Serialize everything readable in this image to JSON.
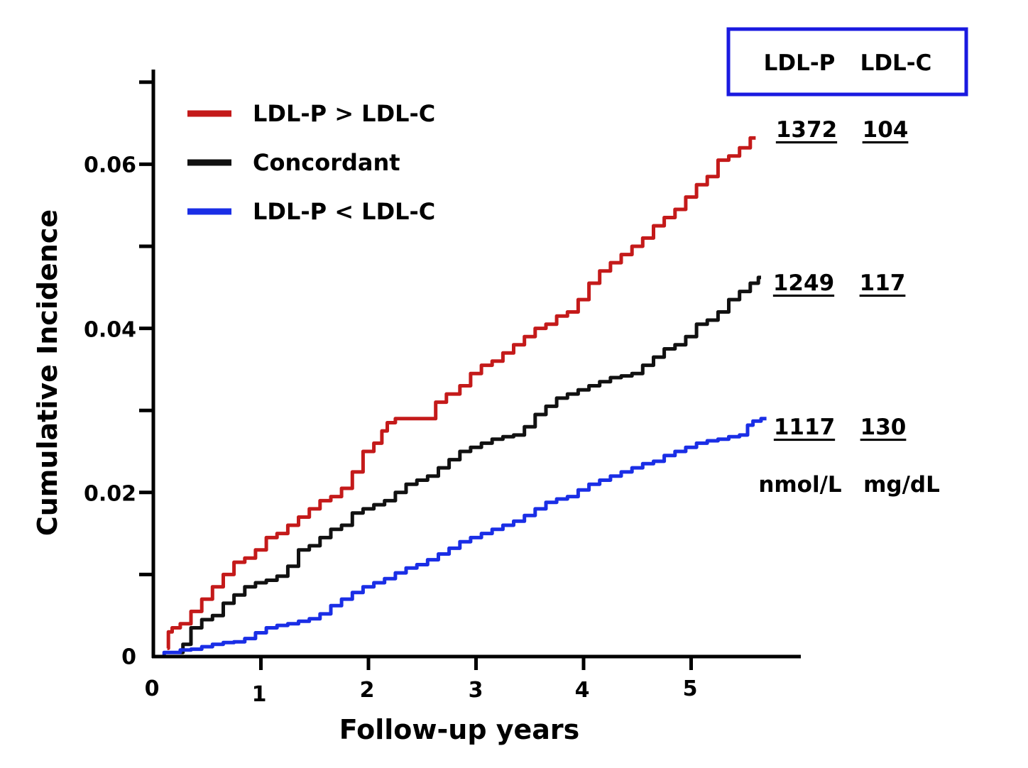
{
  "chart_data": {
    "type": "line",
    "xlabel": "Follow-up years",
    "ylabel": "Cumulative Incidence",
    "xlim": [
      0,
      6
    ],
    "ylim": [
      0,
      0.07
    ],
    "x_ticks": [
      "0",
      "1",
      "2",
      "3",
      "4",
      "5"
    ],
    "y_ticks": [
      "0",
      "0.02",
      "0.04",
      "0.06"
    ],
    "legend_position": "top-left",
    "series": [
      {
        "name": "LDL-P > LDL-C",
        "color": "#c41a1a",
        "x": [
          0.13,
          0.15,
          0.2,
          0.3,
          0.4,
          0.5,
          0.6,
          0.7,
          0.8,
          0.9,
          1.0,
          1.1,
          1.2,
          1.3,
          1.4,
          1.5,
          1.6,
          1.7,
          1.8,
          1.9,
          2.0,
          2.1,
          2.15,
          2.2,
          2.3,
          2.4,
          2.5,
          2.6,
          2.65,
          2.8,
          2.9,
          3.0,
          3.1,
          3.2,
          3.3,
          3.4,
          3.5,
          3.6,
          3.7,
          3.8,
          3.9,
          4.0,
          4.1,
          4.2,
          4.3,
          4.4,
          4.5,
          4.6,
          4.7,
          4.8,
          4.9,
          5.0,
          5.1,
          5.2,
          5.3,
          5.4,
          5.5,
          5.6
        ],
        "y": [
          0.001,
          0.003,
          0.0035,
          0.004,
          0.0055,
          0.007,
          0.0085,
          0.01,
          0.0115,
          0.012,
          0.013,
          0.0145,
          0.015,
          0.016,
          0.017,
          0.018,
          0.019,
          0.0195,
          0.0205,
          0.0225,
          0.025,
          0.026,
          0.0275,
          0.0285,
          0.029,
          0.029,
          0.029,
          0.029,
          0.031,
          0.032,
          0.033,
          0.0345,
          0.0355,
          0.036,
          0.037,
          0.038,
          0.039,
          0.04,
          0.0405,
          0.0415,
          0.042,
          0.0435,
          0.0455,
          0.047,
          0.048,
          0.049,
          0.05,
          0.051,
          0.0525,
          0.0535,
          0.0545,
          0.056,
          0.0575,
          0.0585,
          0.0605,
          0.061,
          0.062,
          0.0632
        ]
      },
      {
        "name": "Concordant",
        "color": "#111111",
        "x": [
          0.25,
          0.3,
          0.4,
          0.5,
          0.6,
          0.7,
          0.8,
          0.9,
          1.0,
          1.1,
          1.2,
          1.3,
          1.4,
          1.5,
          1.6,
          1.7,
          1.8,
          1.9,
          2.0,
          2.1,
          2.2,
          2.3,
          2.4,
          2.5,
          2.6,
          2.7,
          2.8,
          2.9,
          3.0,
          3.1,
          3.2,
          3.3,
          3.4,
          3.5,
          3.6,
          3.7,
          3.8,
          3.9,
          4.0,
          4.1,
          4.2,
          4.3,
          4.4,
          4.5,
          4.6,
          4.7,
          4.8,
          4.9,
          5.0,
          5.1,
          5.2,
          5.3,
          5.4,
          5.5,
          5.6,
          5.65
        ],
        "y": [
          0.0005,
          0.0015,
          0.0035,
          0.0045,
          0.005,
          0.0065,
          0.0075,
          0.0085,
          0.009,
          0.0093,
          0.0098,
          0.011,
          0.013,
          0.0135,
          0.0145,
          0.0155,
          0.016,
          0.0175,
          0.018,
          0.0185,
          0.019,
          0.02,
          0.021,
          0.0215,
          0.022,
          0.023,
          0.024,
          0.025,
          0.0255,
          0.026,
          0.0265,
          0.0268,
          0.027,
          0.028,
          0.0295,
          0.0305,
          0.0315,
          0.032,
          0.0325,
          0.033,
          0.0335,
          0.034,
          0.0342,
          0.0345,
          0.0355,
          0.0365,
          0.0375,
          0.038,
          0.039,
          0.0405,
          0.041,
          0.042,
          0.0435,
          0.0445,
          0.0455,
          0.0462
        ]
      },
      {
        "name": "LDL-P < LDL-C",
        "color": "#1a2ee6",
        "x": [
          0.0,
          0.2,
          0.3,
          0.4,
          0.5,
          0.6,
          0.7,
          0.8,
          0.9,
          1.0,
          1.1,
          1.2,
          1.3,
          1.4,
          1.5,
          1.6,
          1.7,
          1.8,
          1.9,
          2.0,
          2.1,
          2.2,
          2.3,
          2.4,
          2.5,
          2.6,
          2.7,
          2.8,
          2.9,
          3.0,
          3.1,
          3.2,
          3.3,
          3.4,
          3.5,
          3.6,
          3.7,
          3.8,
          3.9,
          4.0,
          4.1,
          4.2,
          4.3,
          4.4,
          4.5,
          4.6,
          4.7,
          4.8,
          4.9,
          5.0,
          5.1,
          5.2,
          5.3,
          5.4,
          5.5,
          5.55,
          5.6,
          5.7
        ],
        "y": [
          0.0,
          0.0005,
          0.0008,
          0.0009,
          0.0012,
          0.0015,
          0.0017,
          0.0018,
          0.0022,
          0.0029,
          0.0035,
          0.0038,
          0.004,
          0.0043,
          0.0046,
          0.0052,
          0.0062,
          0.007,
          0.0078,
          0.0085,
          0.009,
          0.0095,
          0.0102,
          0.0108,
          0.0112,
          0.0118,
          0.0125,
          0.0132,
          0.014,
          0.0145,
          0.015,
          0.0155,
          0.016,
          0.0165,
          0.0172,
          0.018,
          0.0188,
          0.0192,
          0.0195,
          0.0203,
          0.021,
          0.0215,
          0.022,
          0.0225,
          0.023,
          0.0235,
          0.0238,
          0.0245,
          0.025,
          0.0255,
          0.026,
          0.0263,
          0.0265,
          0.0268,
          0.027,
          0.0282,
          0.0287,
          0.029
        ]
      }
    ],
    "annotation_table": {
      "headers": [
        "LDL-P",
        "LDL-C"
      ],
      "rows": [
        {
          "series": "LDL-P > LDL-C",
          "ldl_p": "1372",
          "ldl_c": "104"
        },
        {
          "series": "Concordant",
          "ldl_p": "1249",
          "ldl_c": "117"
        },
        {
          "series": "LDL-P < LDL-C",
          "ldl_p": "1117",
          "ldl_c": "130"
        }
      ],
      "units": [
        "nmol/L",
        "mg/dL"
      ]
    }
  }
}
